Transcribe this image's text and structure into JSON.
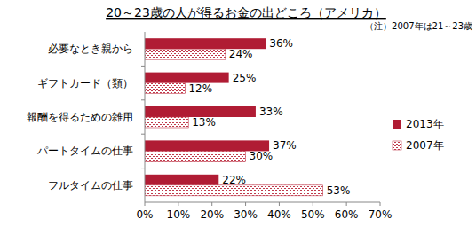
{
  "chart_data": {
    "type": "bar",
    "orientation": "horizontal",
    "title": "20～23歳の人が得るお金の出どころ（アメリカ）",
    "annotations": [
      "（注）2007年は21～23歳"
    ],
    "categories": [
      "必要なとき親から",
      "ギフトカード（類）",
      "報酬を得るための雑用",
      "パートタイムの仕事",
      "フルタイムの仕事"
    ],
    "series": [
      {
        "name": "2013年",
        "color": "#b01c34",
        "values": [
          36,
          25,
          33,
          37,
          22
        ],
        "value_labels": [
          "36%",
          "25%",
          "33%",
          "37%",
          "22%"
        ]
      },
      {
        "name": "2007年",
        "color": "#c0394b",
        "values": [
          24,
          12,
          13,
          30,
          53
        ],
        "value_labels": [
          "24%",
          "12%",
          "13%",
          "30%",
          "53%"
        ]
      }
    ],
    "xlim": [
      0,
      70
    ],
    "xticks": [
      {
        "value": 0,
        "label": "0%"
      },
      {
        "value": 10,
        "label": "10%"
      },
      {
        "value": 20,
        "label": "20%"
      },
      {
        "value": 30,
        "label": "30%"
      },
      {
        "value": 40,
        "label": "40%"
      },
      {
        "value": 50,
        "label": "50%"
      },
      {
        "value": 60,
        "label": "60%"
      },
      {
        "value": 70,
        "label": "70%"
      }
    ],
    "grid": false,
    "legend": "right",
    "data_labels": true
  }
}
